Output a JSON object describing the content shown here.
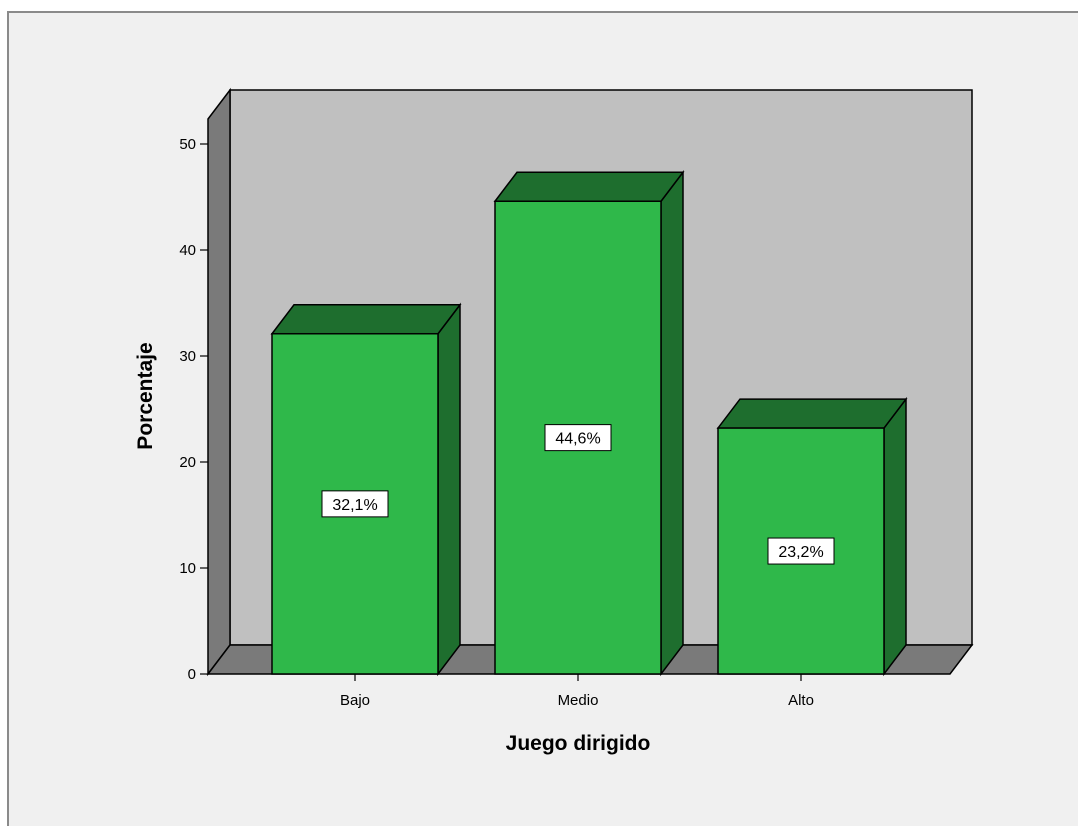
{
  "chart_data": {
    "type": "bar",
    "categories": [
      "Bajo",
      "Medio",
      "Alto"
    ],
    "values": [
      32.1,
      44.6,
      23.2
    ],
    "data_labels": [
      "32,1%",
      "44,6%",
      "23,2%"
    ],
    "xlabel": "Juego dirigido",
    "ylabel": "Porcentaje",
    "ylim": [
      0,
      50
    ],
    "yticks": [
      0,
      10,
      20,
      30,
      40,
      50
    ],
    "grid": false,
    "style": "3d",
    "colors": {
      "bar_front": "#2fb84a",
      "bar_side": "#1e6e2e",
      "wall_back": "#c0c0c0",
      "wall_side": "#7a7a7a",
      "floor": "#7a7a7a",
      "background": "#f0f0f0"
    }
  }
}
